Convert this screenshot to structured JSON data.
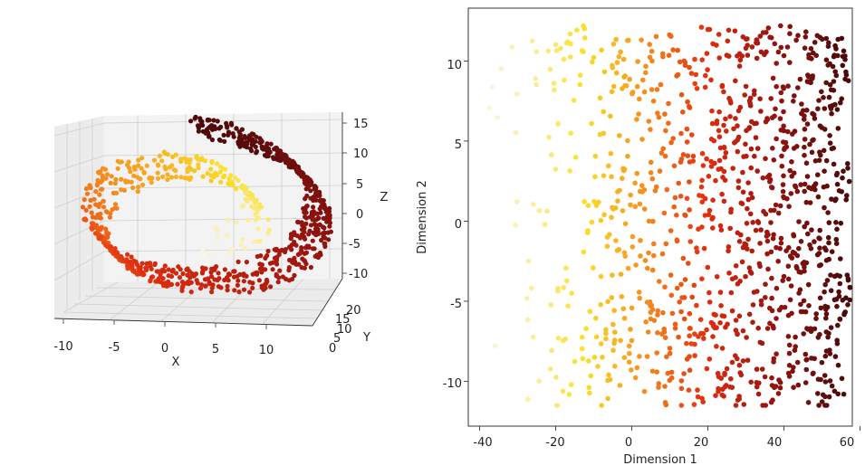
{
  "chart_data": [
    {
      "type": "scatter-3d",
      "title": "",
      "xlabel": "X",
      "ylabel": "Y",
      "zlabel": "Z",
      "x_ticks": [
        "-10",
        "-5",
        "0",
        "5",
        "10"
      ],
      "y_ticks": [
        "0",
        "5",
        "10",
        "15",
        "20"
      ],
      "z_ticks": [
        "15",
        "10",
        "5",
        "0",
        "-5",
        "-10"
      ],
      "xlim": [
        -11,
        14
      ],
      "ylim": [
        0,
        21
      ],
      "zlim": [
        -12,
        16
      ],
      "data_description": "Swiss roll point cloud: x = t*cos(t), z = t*sin(t), y uniform in [0,21], t from 4.7 to 14.1, colored by t",
      "t_range": [
        4.7,
        14.1
      ],
      "n_points": 900,
      "colormap": "afmhot_r"
    },
    {
      "type": "scatter",
      "title": "",
      "xlabel": "Dimension 1",
      "ylabel": "Dimension 2",
      "x_ticks": [
        "-40",
        "-20",
        "0",
        "20",
        "40",
        "60"
      ],
      "y_ticks": [
        "10",
        "5",
        "0",
        "-5",
        "-10"
      ],
      "xlim": [
        -43,
        58
      ],
      "ylim": [
        -12.8,
        13.3
      ],
      "data_description": "2D embedding of the Swiss roll, points colored by position along Dimension 1",
      "x_range": [
        -39,
        56
      ],
      "y_range": [
        -11.5,
        12.2
      ],
      "n_points": 1100,
      "colormap": "afmhot_r"
    }
  ]
}
